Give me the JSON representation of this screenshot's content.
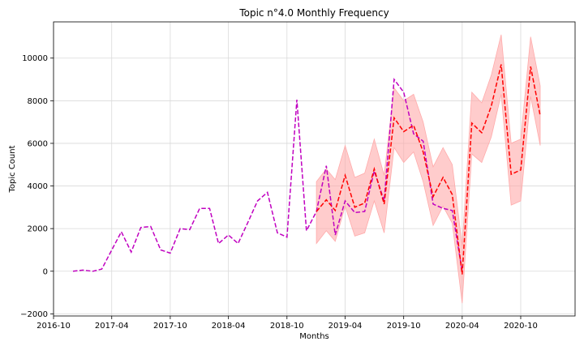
{
  "chart_data": {
    "type": "line",
    "title": "Topic n°4.0 Monthly Frequency",
    "xlabel": "Months",
    "ylabel": "Topic Count",
    "xlim": [
      "2016-10-01",
      "2021-03-20"
    ],
    "ylim": [
      -2100,
      11700
    ],
    "x_ticks": [
      "2016-10",
      "2017-04",
      "2017-10",
      "2018-04",
      "2018-10",
      "2019-04",
      "2019-10",
      "2020-04",
      "2020-10"
    ],
    "y_ticks": [
      -2000,
      0,
      2000,
      4000,
      6000,
      8000,
      10000
    ],
    "y_tick_labels": [
      "−2000",
      "0",
      "2000",
      "4000",
      "6000",
      "8000",
      "10000"
    ],
    "grid": true,
    "series": [
      {
        "color": "#c000c0",
        "style": "dashed",
        "x": [
          "2016-12",
          "2017-01",
          "2017-02",
          "2017-03",
          "2017-04",
          "2017-05",
          "2017-06",
          "2017-07",
          "2017-08",
          "2017-09",
          "2017-10",
          "2017-11",
          "2017-12",
          "2018-01",
          "2018-02",
          "2018-03",
          "2018-04",
          "2018-05",
          "2018-06",
          "2018-07",
          "2018-08",
          "2018-09",
          "2018-10",
          "2018-11",
          "2018-12",
          "2019-01",
          "2019-02",
          "2019-03",
          "2019-04",
          "2019-05",
          "2019-06",
          "2019-07",
          "2019-08",
          "2019-09",
          "2019-10",
          "2019-11",
          "2019-12",
          "2020-01",
          "2020-02",
          "2020-03",
          "2020-04"
        ],
        "y": [
          0,
          50,
          0,
          100,
          1000,
          1850,
          900,
          2050,
          2100,
          1000,
          850,
          2000,
          1950,
          2950,
          2950,
          1300,
          1700,
          1300,
          2300,
          3300,
          3700,
          1800,
          1600,
          8050,
          1900,
          2800,
          4950,
          1700,
          3300,
          2750,
          2800,
          4700,
          3300,
          9000,
          8400,
          6450,
          6100,
          3150,
          2950,
          2850,
          0
        ]
      },
      {
        "color": "#ff0000",
        "style": "dashed",
        "x": [
          "2019-01",
          "2019-02",
          "2019-03",
          "2019-04",
          "2019-05",
          "2019-06",
          "2019-07",
          "2019-08",
          "2019-09",
          "2019-10",
          "2019-11",
          "2019-12",
          "2020-01",
          "2020-02",
          "2020-03",
          "2020-04",
          "2020-05",
          "2020-06",
          "2020-07",
          "2020-08",
          "2020-09",
          "2020-10",
          "2020-11",
          "2020-12"
        ],
        "y": [
          2800,
          3350,
          2850,
          4500,
          3000,
          3200,
          4800,
          3150,
          7200,
          6550,
          6850,
          5600,
          3500,
          4400,
          3600,
          -150,
          6950,
          6500,
          7750,
          9700,
          4550,
          4750,
          9600,
          7300
        ]
      }
    ],
    "confidence_band": {
      "color": "#ffaaaa",
      "x": [
        "2019-01",
        "2019-02",
        "2019-03",
        "2019-04",
        "2019-05",
        "2019-06",
        "2019-07",
        "2019-08",
        "2019-09",
        "2019-10",
        "2019-11",
        "2019-12",
        "2020-01",
        "2020-02",
        "2020-03",
        "2020-04",
        "2020-05",
        "2020-06",
        "2020-07",
        "2020-08",
        "2020-09",
        "2020-10",
        "2020-11",
        "2020-12"
      ],
      "lower": [
        1300,
        1900,
        1400,
        3050,
        1650,
        1800,
        3300,
        1800,
        5800,
        5100,
        5600,
        4200,
        2150,
        3050,
        2250,
        -1500,
        5500,
        5100,
        6300,
        8300,
        3100,
        3300,
        8200,
        5900
      ],
      "upper": [
        4200,
        4800,
        4300,
        5900,
        4400,
        4600,
        6200,
        4500,
        8600,
        8000,
        8300,
        7000,
        4900,
        5800,
        5000,
        1200,
        8400,
        7900,
        9200,
        11100,
        6000,
        6200,
        11000,
        8700
      ]
    }
  }
}
